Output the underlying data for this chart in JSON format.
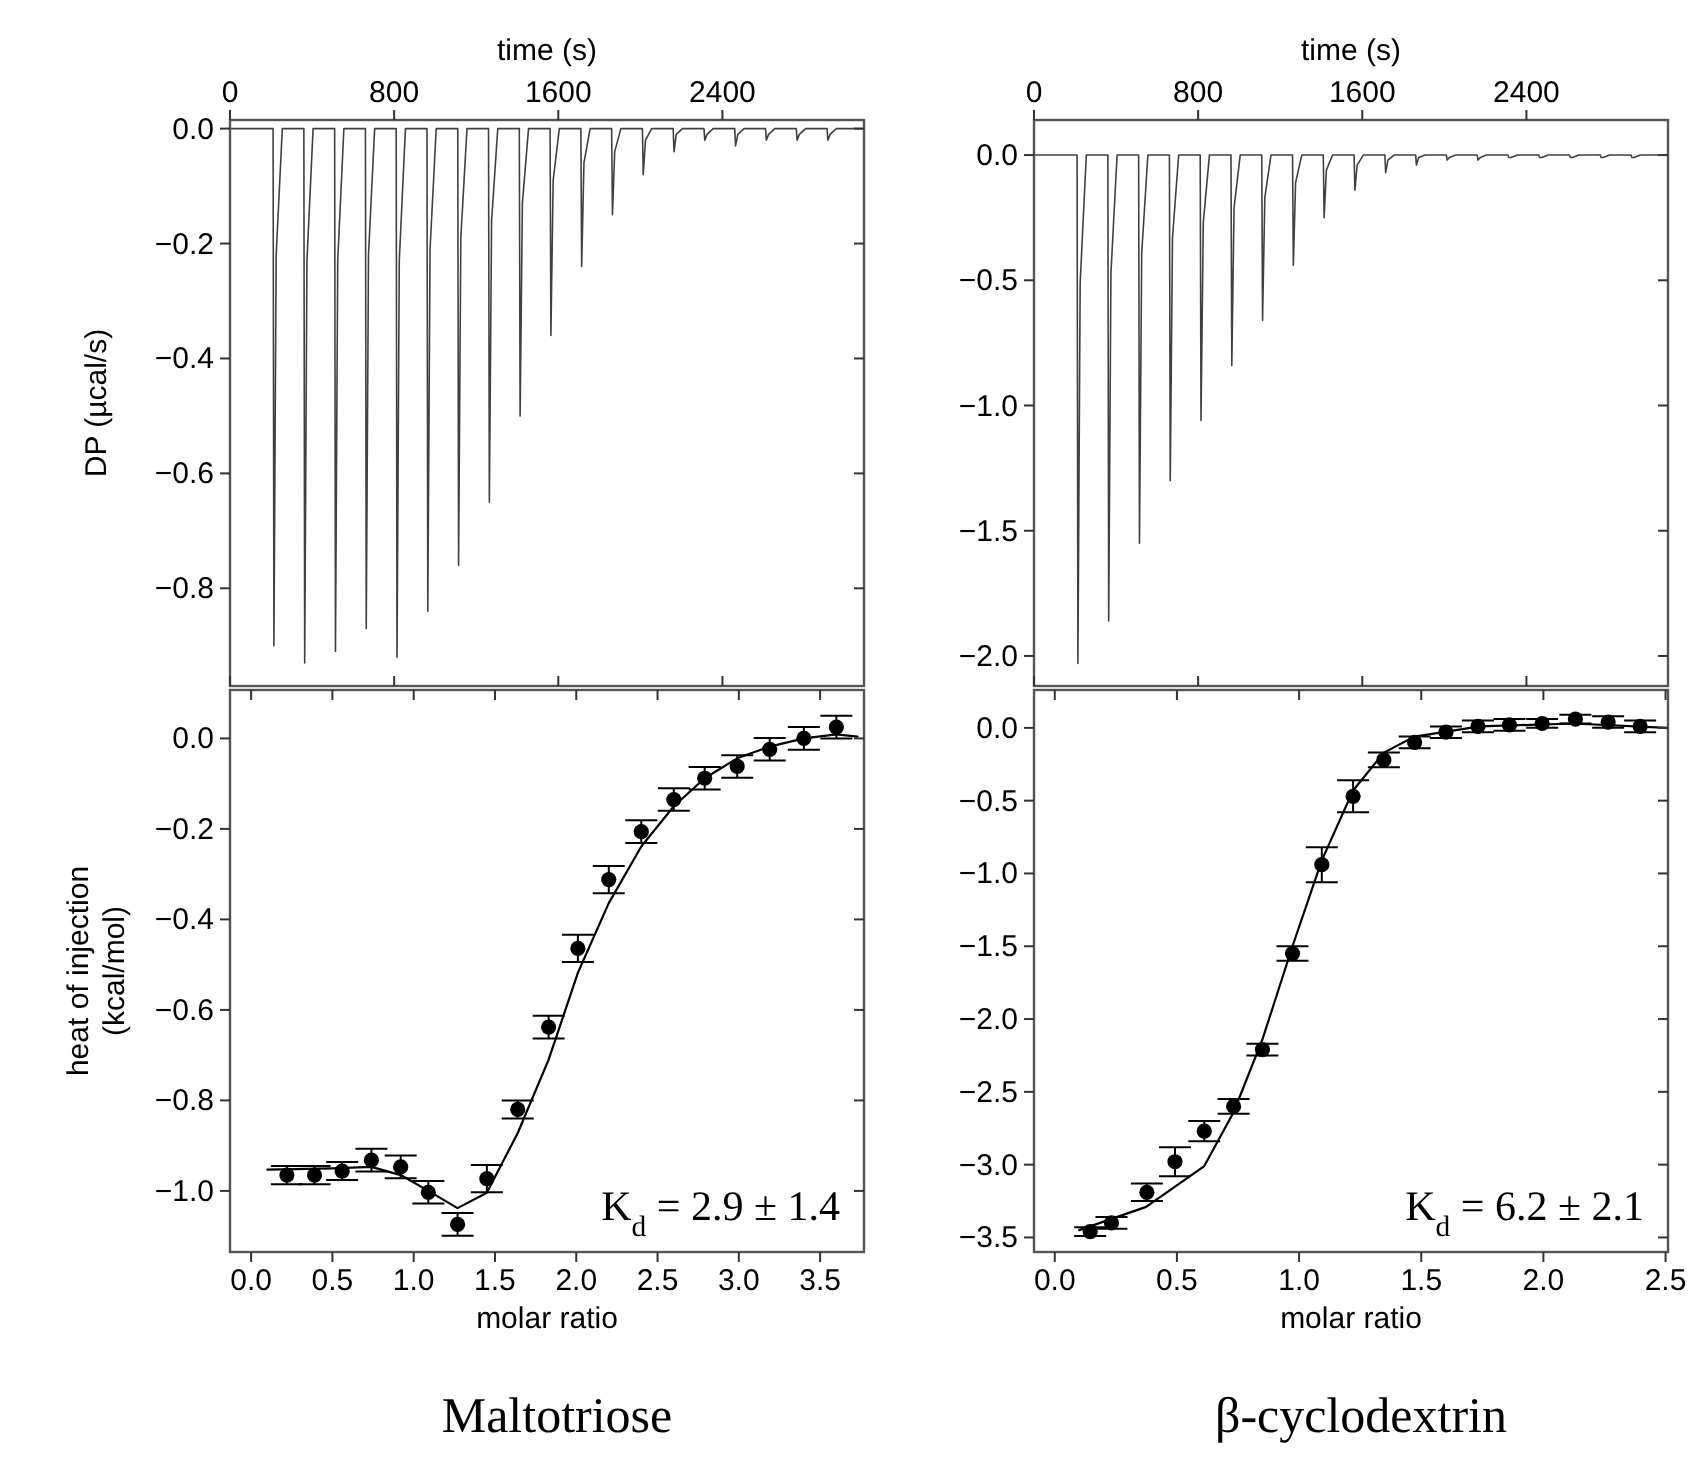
{
  "chart_data": [
    {
      "type": "line",
      "xlabel": "time (s)",
      "ylabel": "DP (µcal/s)",
      "xlim": [
        0,
        3090
      ],
      "xticks": [
        0,
        800,
        1600,
        2400
      ],
      "ylim": [
        -0.97,
        0.015
      ],
      "yticks": [
        {
          "value": 0,
          "label": "0.0"
        },
        {
          "value": -0.2,
          "label": "−0.2"
        },
        {
          "value": -0.4,
          "label": "−0.4"
        },
        {
          "value": -0.6,
          "label": "−0.6"
        },
        {
          "value": -0.8,
          "label": "−0.8"
        }
      ],
      "series": [
        {
          "color": "#404040",
          "x": [
            0,
            210,
            214,
            225,
            255,
            360,
            364,
            375,
            405,
            510,
            514,
            525,
            555,
            660,
            664,
            675,
            705,
            810,
            814,
            825,
            855,
            960,
            964,
            975,
            1005,
            1110,
            1114,
            1125,
            1155,
            1260,
            1264,
            1275,
            1305,
            1410,
            1414,
            1425,
            1455,
            1560,
            1564,
            1575,
            1605,
            1710,
            1714,
            1725,
            1755,
            1860,
            1864,
            1875,
            1905,
            2010,
            2014,
            2025,
            2055,
            2160,
            2164,
            2175,
            2205,
            2310,
            2314,
            2325,
            2355,
            2460,
            2464,
            2475,
            2505,
            2610,
            2614,
            2625,
            2655,
            2760,
            2764,
            2775,
            2805,
            2910,
            2914,
            2925,
            2955,
            3080
          ],
          "values": [
            0,
            0,
            -0.9,
            -0.22,
            0,
            0,
            -0.93,
            -0.23,
            0,
            0,
            -0.91,
            -0.23,
            0,
            0,
            -0.87,
            -0.22,
            0,
            0,
            -0.92,
            -0.23,
            0,
            0,
            -0.84,
            -0.21,
            0,
            0,
            -0.76,
            -0.19,
            0,
            0,
            -0.65,
            -0.16,
            0,
            0,
            -0.5,
            -0.13,
            0,
            0,
            -0.36,
            -0.09,
            0,
            0,
            -0.24,
            -0.06,
            0,
            0,
            -0.15,
            -0.04,
            0,
            0,
            -0.08,
            -0.02,
            0,
            0,
            -0.04,
            -0.01,
            0,
            0,
            -0.02,
            -0.01,
            0,
            0,
            -0.03,
            -0.01,
            0,
            0,
            -0.02,
            -0.01,
            0,
            0,
            -0.02,
            -0.01,
            0,
            0,
            -0.02,
            -0.01,
            0,
            0
          ]
        }
      ]
    },
    {
      "type": "line",
      "xlabel": "time (s)",
      "xlim": [
        0,
        3090
      ],
      "xticks": [
        0,
        800,
        1600,
        2400
      ],
      "ylim": [
        -2.12,
        0.14
      ],
      "yticks": [
        {
          "value": 0,
          "label": "0.0"
        },
        {
          "value": -0.5,
          "label": "−0.5"
        },
        {
          "value": -1,
          "label": "−1.0"
        },
        {
          "value": -1.5,
          "label": "−1.5"
        },
        {
          "value": -2,
          "label": "−2.0"
        }
      ],
      "series": [
        {
          "color": "#404040",
          "x": [
            0,
            210,
            214,
            225,
            255,
            360,
            364,
            375,
            405,
            510,
            514,
            525,
            555,
            660,
            664,
            675,
            705,
            810,
            814,
            825,
            855,
            960,
            964,
            975,
            1005,
            1110,
            1114,
            1125,
            1155,
            1260,
            1264,
            1275,
            1305,
            1410,
            1414,
            1425,
            1455,
            1560,
            1564,
            1575,
            1605,
            1710,
            1714,
            1725,
            1755,
            1860,
            1864,
            1875,
            1905,
            2010,
            2014,
            2025,
            2055,
            2160,
            2164,
            2175,
            2205,
            2310,
            2314,
            2325,
            2355,
            2460,
            2464,
            2475,
            2505,
            2610,
            2614,
            2625,
            2655,
            2760,
            2764,
            2775,
            2805,
            2910,
            2914,
            2925,
            2955,
            3080
          ],
          "values": [
            0,
            0,
            -2.03,
            -0.51,
            0,
            0,
            -1.86,
            -0.47,
            0,
            0,
            -1.55,
            -0.39,
            0,
            0,
            -1.3,
            -0.33,
            0,
            0,
            -1.06,
            -0.27,
            0,
            0,
            -0.84,
            -0.21,
            0,
            0,
            -0.66,
            -0.17,
            0,
            0,
            -0.44,
            -0.11,
            0,
            0,
            -0.25,
            -0.06,
            0,
            0,
            -0.14,
            -0.04,
            0,
            0,
            -0.07,
            -0.02,
            0,
            0,
            -0.04,
            -0.01,
            0,
            0,
            -0.02,
            -0.01,
            0,
            0,
            -0.02,
            -0.01,
            0,
            0,
            -0.01,
            -0.01,
            0,
            0,
            -0.01,
            -0.01,
            0,
            0,
            -0.01,
            -0.01,
            0,
            0,
            -0.01,
            -0.01,
            0,
            0,
            -0.01,
            -0.01,
            0,
            0
          ]
        }
      ]
    },
    {
      "type": "scatter",
      "xlabel": "molar ratio",
      "ylabel": "heat of injection\n(kcal/mol)",
      "xlim": [
        -0.13,
        3.77
      ],
      "xticks": [
        {
          "value": 0,
          "label": "0.0"
        },
        {
          "value": 0.5,
          "label": "0.5"
        },
        {
          "value": 1,
          "label": "1.0"
        },
        {
          "value": 1.5,
          "label": "1.5"
        },
        {
          "value": 2,
          "label": "2.0"
        },
        {
          "value": 2.5,
          "label": "2.5"
        },
        {
          "value": 3,
          "label": "3.0"
        },
        {
          "value": 3.5,
          "label": "3.5"
        }
      ],
      "ylim": [
        -1.135,
        0.107
      ],
      "yticks": [
        {
          "value": 0,
          "label": "0.0"
        },
        {
          "value": -0.2,
          "label": "−0.2"
        },
        {
          "value": -0.4,
          "label": "−0.4"
        },
        {
          "value": -0.6,
          "label": "−0.6"
        },
        {
          "value": -0.8,
          "label": "−0.8"
        },
        {
          "value": -1,
          "label": "−1.0"
        }
      ],
      "annotations": [
        "K$_{d}$ = 2.9 ± 1.4",
        "Maltotriose"
      ],
      "series": [
        {
          "marker": "circle",
          "color": "#000000",
          "x": [
            0.22,
            0.39,
            0.56,
            0.74,
            0.92,
            1.09,
            1.27,
            1.45,
            1.64,
            1.83,
            2.01,
            2.2,
            2.4,
            2.6,
            2.79,
            2.99,
            3.19,
            3.4,
            3.6
          ],
          "values": [
            -0.965,
            -0.965,
            -0.956,
            -0.932,
            -0.947,
            -1.003,
            -1.074,
            -0.973,
            -0.82,
            -0.638,
            -0.464,
            -0.312,
            -0.206,
            -0.135,
            -0.088,
            -0.062,
            -0.024,
            0.0,
            0.025
          ],
          "errors": [
            0.02,
            0.02,
            0.02,
            0.025,
            0.025,
            0.025,
            0.025,
            0.03,
            0.02,
            0.025,
            0.03,
            0.03,
            0.025,
            0.025,
            0.025,
            0.025,
            0.025,
            0.025,
            0.025
          ]
        },
        {
          "type": "line",
          "color": "#000000",
          "x": [
            0.1,
            0.5,
            0.74,
            0.92,
            1.09,
            1.27,
            1.45,
            1.64,
            1.83,
            2.01,
            2.2,
            2.4,
            2.6,
            2.79,
            2.99,
            3.19,
            3.4,
            3.6,
            3.73
          ],
          "values": [
            -0.953,
            -0.95,
            -0.947,
            -0.965,
            -1.0,
            -1.038,
            -1.004,
            -0.872,
            -0.71,
            -0.518,
            -0.364,
            -0.239,
            -0.15,
            -0.088,
            -0.044,
            -0.018,
            0.0,
            0.009,
            0.004
          ]
        }
      ]
    },
    {
      "type": "scatter",
      "xlabel": "molar ratio",
      "xlim": [
        -0.085,
        2.51
      ],
      "xticks": [
        {
          "value": 0,
          "label": "0.0"
        },
        {
          "value": 0.5,
          "label": "0.5"
        },
        {
          "value": 1,
          "label": "1.0"
        },
        {
          "value": 1.5,
          "label": "1.5"
        },
        {
          "value": 2,
          "label": "2.0"
        },
        {
          "value": 2.5,
          "label": "2.5"
        }
      ],
      "ylim": [
        -3.6,
        0.26
      ],
      "yticks": [
        {
          "value": 0,
          "label": "0.0"
        },
        {
          "value": -0.5,
          "label": "−0.5"
        },
        {
          "value": -1,
          "label": "−1.0"
        },
        {
          "value": -1.5,
          "label": "−1.5"
        },
        {
          "value": -2,
          "label": "−2.0"
        },
        {
          "value": -2.5,
          "label": "−2.5"
        },
        {
          "value": -3,
          "label": "−3.0"
        },
        {
          "value": -3.5,
          "label": "−3.5"
        }
      ],
      "annotations": [
        "K$_{d}$ = 6.2 ± 2.1",
        "β-cyclodextrin"
      ],
      "series": [
        {
          "marker": "circle",
          "color": "#000000",
          "x": [
            0.145,
            0.232,
            0.377,
            0.492,
            0.612,
            0.732,
            0.85,
            0.973,
            1.093,
            1.221,
            1.347,
            1.473,
            1.601,
            1.732,
            1.861,
            1.995,
            2.131,
            2.265,
            2.396
          ],
          "values": [
            -3.46,
            -3.4,
            -3.19,
            -2.98,
            -2.77,
            -2.6,
            -2.21,
            -1.55,
            -0.94,
            -0.47,
            -0.22,
            -0.1,
            -0.03,
            0.01,
            0.02,
            0.03,
            0.06,
            0.04,
            0.01
          ],
          "errors": [
            0.03,
            0.04,
            0.06,
            0.1,
            0.07,
            0.05,
            0.04,
            0.05,
            0.12,
            0.11,
            0.05,
            0.04,
            0.04,
            0.04,
            0.04,
            0.03,
            0.03,
            0.04,
            0.04
          ]
        },
        {
          "type": "line",
          "color": "#000000",
          "x": [
            0.1,
            0.374,
            0.612,
            0.732,
            0.85,
            0.973,
            1.093,
            1.221,
            1.347,
            1.473,
            1.74,
            2.123,
            2.505
          ],
          "values": [
            -3.45,
            -3.29,
            -3.01,
            -2.64,
            -2.14,
            -1.5,
            -0.91,
            -0.43,
            -0.17,
            -0.06,
            0.01,
            0.03,
            0.0
          ]
        }
      ]
    }
  ]
}
